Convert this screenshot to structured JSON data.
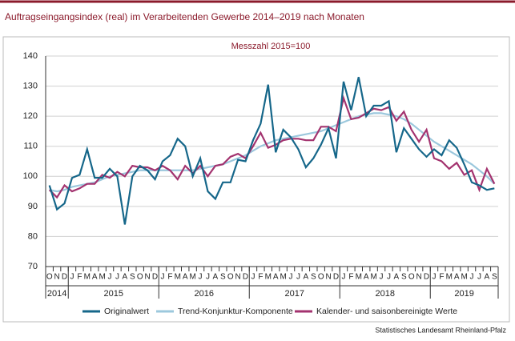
{
  "chart_data": {
    "type": "line",
    "title": "Auftragseingangsindex (real) im Verarbeitenden Gewerbe 2014–2019 nach Monaten",
    "subtitle": "Messzahl 2015=100",
    "source": "Statistisches Landesamt Rheinland-Pfalz",
    "categories": [
      "O",
      "N",
      "D",
      "J",
      "F",
      "M",
      "A",
      "M",
      "J",
      "J",
      "A",
      "S",
      "O",
      "N",
      "D",
      "J",
      "F",
      "M",
      "A",
      "M",
      "J",
      "J",
      "A",
      "S",
      "O",
      "N",
      "D",
      "J",
      "F",
      "M",
      "A",
      "M",
      "J",
      "J",
      "A",
      "S",
      "O",
      "N",
      "D",
      "J",
      "F",
      "M",
      "A",
      "M",
      "J",
      "J",
      "A",
      "S",
      "O",
      "N",
      "D",
      "J",
      "F",
      "M",
      "A",
      "M",
      "J",
      "J",
      "A",
      "S"
    ],
    "years": [
      "2014",
      "2015",
      "2016",
      "2017",
      "2018",
      "2019"
    ],
    "ylim": [
      70,
      140
    ],
    "yticks": [
      70,
      80,
      90,
      100,
      110,
      120,
      130,
      140
    ],
    "grid": true,
    "legend": "bottom",
    "series": [
      {
        "name": "Originalwert",
        "color": "#16678a",
        "values": [
          97,
          89,
          91,
          99.5,
          100.5,
          109,
          99.5,
          99.5,
          102.5,
          100,
          84,
          100,
          103.5,
          102,
          99,
          105,
          107,
          112.5,
          110,
          100,
          106,
          95,
          92.5,
          98,
          98,
          105.5,
          105,
          112,
          117.5,
          130.5,
          108,
          115.5,
          113,
          109,
          103,
          106,
          110.5,
          116,
          106,
          131.5,
          122,
          133,
          120,
          123.5,
          123.5,
          125,
          108,
          116,
          112.5,
          109,
          106.5,
          109,
          107,
          112,
          109.5,
          104,
          98,
          97,
          95.5,
          96
        ]
      },
      {
        "name": "Trend-Konjunktur-Komponente",
        "color": "#9cc8dd",
        "values": [
          95.5,
          95,
          95.5,
          96.5,
          97,
          97.5,
          98,
          99,
          100,
          100.5,
          101,
          101.5,
          102,
          102,
          102,
          102,
          102,
          102,
          102,
          102,
          102.5,
          103,
          103.5,
          104,
          105,
          106,
          107,
          108.5,
          110,
          111,
          112,
          112.5,
          113,
          113.5,
          114,
          114.5,
          115,
          116,
          117,
          118,
          119,
          120,
          120.5,
          121,
          121,
          120.5,
          120,
          119,
          117.5,
          115.5,
          113.5,
          111.5,
          110,
          108.5,
          107,
          105.5,
          104,
          102,
          100,
          97.5
        ]
      },
      {
        "name": "Kalender- und saisonbereinigte Werte",
        "color": "#a3336f",
        "values": [
          95.5,
          93,
          97,
          95,
          96,
          97.5,
          97.5,
          100.5,
          99.5,
          101.5,
          100,
          103.5,
          103,
          103,
          102,
          103.5,
          102,
          99,
          103.5,
          101,
          103.5,
          100,
          103.5,
          104,
          106.5,
          107.5,
          106,
          110,
          114.5,
          109.5,
          110.5,
          112,
          112.5,
          112.5,
          112,
          112,
          116.5,
          116.5,
          115,
          126,
          119,
          119.5,
          121,
          122.5,
          122,
          123,
          118.5,
          121.5,
          115.5,
          111.5,
          115.5,
          106,
          105,
          102.5,
          104.5,
          100.5,
          102,
          95.5,
          102.5,
          97.5
        ]
      }
    ]
  }
}
